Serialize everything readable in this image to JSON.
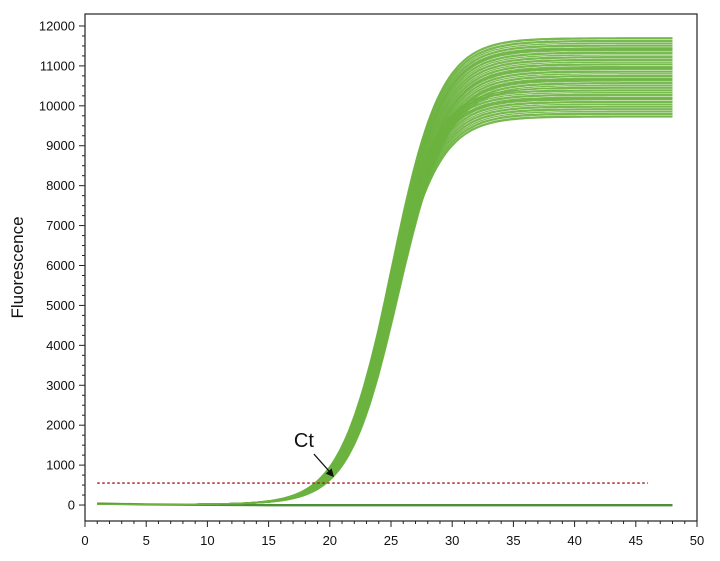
{
  "chart_data": {
    "type": "line",
    "title": "",
    "xlabel": "",
    "ylabel": "Fluorescence",
    "xlim": [
      0,
      50
    ],
    "ylim": [
      -400,
      12300
    ],
    "xticks": [
      0,
      5,
      10,
      15,
      20,
      25,
      30,
      35,
      40,
      45,
      50
    ],
    "yticks": [
      0,
      1000,
      2000,
      3000,
      4000,
      5000,
      6000,
      7000,
      8000,
      9000,
      10000,
      11000,
      12000
    ],
    "grid": false,
    "legend": "none",
    "threshold": {
      "value": 550,
      "x_start": 1,
      "x_end": 46,
      "color": "#a01818"
    },
    "annotation": {
      "text": "Ct",
      "x": 20.5,
      "y": 550
    },
    "amplification_curves": {
      "count": 60,
      "color": "#6cb33f",
      "x_start": 1,
      "x_end": 48,
      "plateau_range": [
        9700,
        11700
      ],
      "midpoint_cycle_range": [
        24.6,
        25.6
      ],
      "typical": {
        "plateau": 10600,
        "midpoint_cycle": 25.1,
        "slope_cycles": 2.0,
        "baseline": 20
      }
    },
    "negative_curves": {
      "count": 6,
      "color": "#4e8f3a",
      "x": [
        1,
        5,
        10,
        15,
        20,
        25,
        30,
        35,
        40,
        45,
        48
      ],
      "values": [
        40,
        20,
        10,
        0,
        0,
        0,
        0,
        0,
        0,
        0,
        0
      ]
    }
  }
}
